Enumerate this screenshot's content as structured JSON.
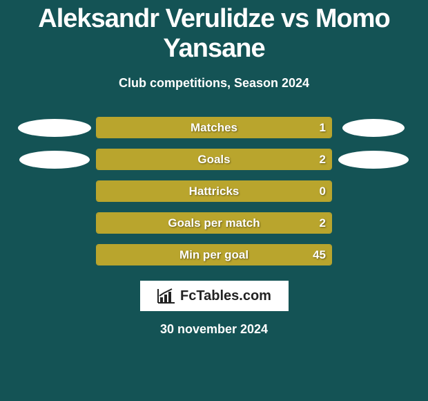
{
  "title": "Aleksandr Verulidze vs Momo Yansane",
  "subtitle": "Club competitions, Season 2024",
  "colors": {
    "background": "#145355",
    "bar_fill": "#b9a52d",
    "bar_border": "#b9a52d",
    "text": "#ffffff",
    "label_shadow": "rgba(0,0,0,0.45)",
    "logo_bg": "#ffffff",
    "logo_text": "#222222"
  },
  "rows": [
    {
      "label": "Matches",
      "left_value": "",
      "right_value": "1",
      "left_fill_pct": 0,
      "right_fill_pct": 100,
      "left_oval": {
        "w": 106,
        "h": 26
      },
      "right_oval": {
        "w": 90,
        "h": 26
      }
    },
    {
      "label": "Goals",
      "left_value": "",
      "right_value": "2",
      "left_fill_pct": 0,
      "right_fill_pct": 100,
      "left_oval": {
        "w": 102,
        "h": 26
      },
      "right_oval": {
        "w": 102,
        "h": 26
      }
    },
    {
      "label": "Hattricks",
      "left_value": "",
      "right_value": "0",
      "left_fill_pct": 0,
      "right_fill_pct": 100,
      "left_oval": null,
      "right_oval": null
    },
    {
      "label": "Goals per match",
      "left_value": "",
      "right_value": "2",
      "left_fill_pct": 0,
      "right_fill_pct": 100,
      "left_oval": null,
      "right_oval": null
    },
    {
      "label": "Min per goal",
      "left_value": "",
      "right_value": "45",
      "left_fill_pct": 0,
      "right_fill_pct": 100,
      "left_oval": null,
      "right_oval": null
    }
  ],
  "footer": {
    "brand": "FcTables.com",
    "date": "30 november 2024"
  }
}
